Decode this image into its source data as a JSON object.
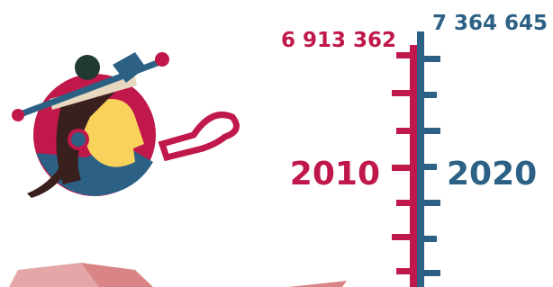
{
  "left": {
    "value": "6 913 362",
    "year": "2010"
  },
  "right": {
    "value": "7 364 645",
    "year": "2020"
  }
}
